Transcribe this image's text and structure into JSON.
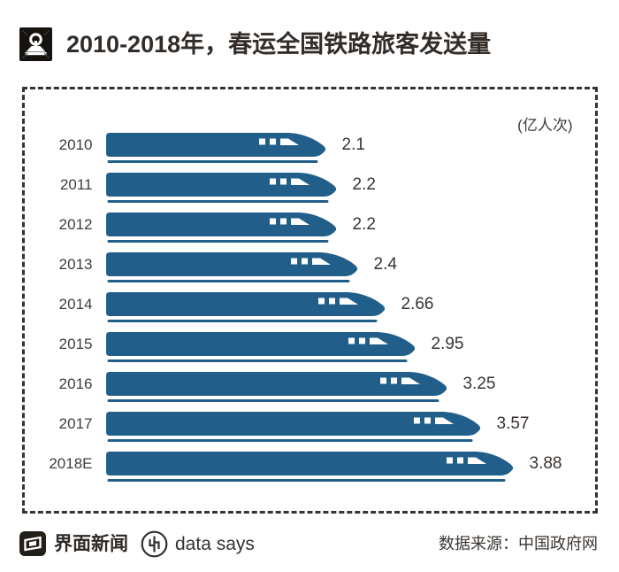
{
  "header": {
    "logo": "china-railway-icon",
    "title": "2010-2018年，春运全国铁路旅客发送量"
  },
  "chart_data": {
    "type": "bar",
    "orientation": "horizontal",
    "title": "2010-2018年，春运全国铁路旅客发送量",
    "unit_label": "(亿人次)",
    "categories": [
      "2010",
      "2011",
      "2012",
      "2013",
      "2014",
      "2015",
      "2016",
      "2017",
      "2018E"
    ],
    "values": [
      2.1,
      2.2,
      2.2,
      2.4,
      2.66,
      2.95,
      3.25,
      3.57,
      3.88
    ],
    "value_labels": [
      "2.1",
      "2.2",
      "2.2",
      "2.4",
      "2.66",
      "2.95",
      "3.25",
      "3.57",
      "3.88"
    ],
    "xlim": [
      0,
      4.2
    ],
    "bar_color": "#215e89",
    "bar_style": "train-shaped-bar-with-rail-underline",
    "legend": "none",
    "grid": "off"
  },
  "footer": {
    "brand_left": "界面新闻",
    "brand_right": "data says",
    "source": "数据来源：中国政府网"
  }
}
